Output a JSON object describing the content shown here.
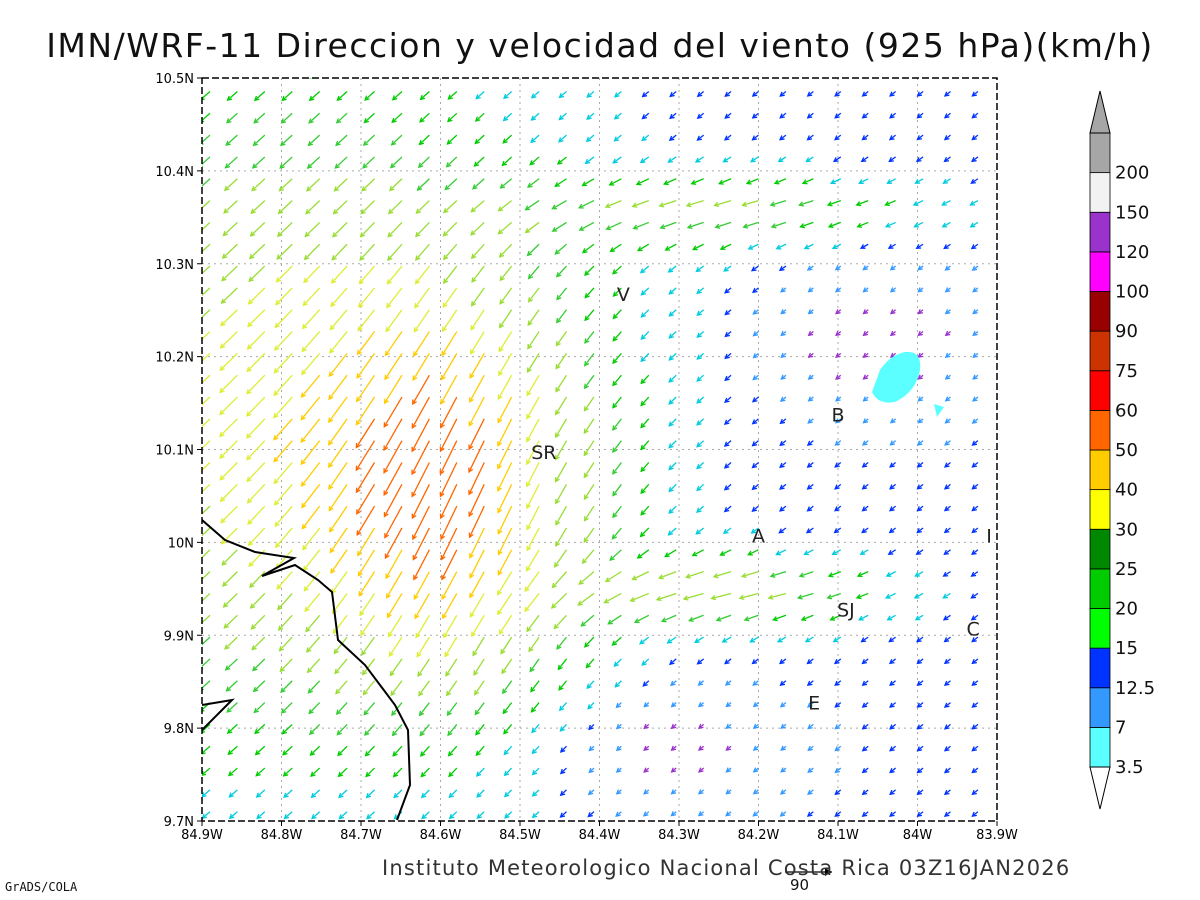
{
  "title": "IMN/WRF-11 Direccion y velocidad del viento (925 hPa)(km/h)",
  "footer": "Instituto Meteorologico Nacional Costa Rica 03Z16JAN2026",
  "software": "GrADS/COLA",
  "reference_vector_label": "90",
  "map": {
    "lon_range": [
      -84.9,
      -83.9
    ],
    "lat_range": [
      9.7,
      10.5
    ],
    "lon_ticks": [
      "84.9W",
      "84.8W",
      "84.7W",
      "84.6W",
      "84.5W",
      "84.4W",
      "84.3W",
      "84.2W",
      "84.1W",
      "84W",
      "83.9W"
    ],
    "lat_ticks": [
      "9.7N",
      "9.8N",
      "9.9N",
      "10N",
      "10.1N",
      "10.2N",
      "10.3N",
      "10.4N",
      "10.5N"
    ],
    "grid": true,
    "cities": [
      {
        "label": "V",
        "lon": -84.37,
        "lat": 10.26
      },
      {
        "label": "SR",
        "lon": -84.47,
        "lat": 10.09
      },
      {
        "label": "B",
        "lon": -84.1,
        "lat": 10.13
      },
      {
        "label": "A",
        "lon": -84.2,
        "lat": 10.0
      },
      {
        "label": "I",
        "lon": -83.91,
        "lat": 10.0
      },
      {
        "label": "SJ",
        "lon": -84.09,
        "lat": 9.92
      },
      {
        "label": "C",
        "lon": -83.93,
        "lat": 9.9
      },
      {
        "label": "E",
        "lon": -84.13,
        "lat": 9.82
      }
    ]
  },
  "colorbar": {
    "labels": [
      "3.5",
      "7",
      "12.5",
      "15",
      "20",
      "25",
      "30",
      "40",
      "50",
      "60",
      "75",
      "90",
      "100",
      "120",
      "150",
      "200"
    ],
    "colors": [
      "#5bffff",
      "#3399ff",
      "#0033ff",
      "#00ff00",
      "#00cc00",
      "#008800",
      "#ffff00",
      "#ffcc00",
      "#ff6600",
      "#ff0000",
      "#cc3300",
      "#990000",
      "#ff00ff",
      "#9933cc",
      "#f2f2f2",
      "#a6a6a6"
    ]
  }
}
